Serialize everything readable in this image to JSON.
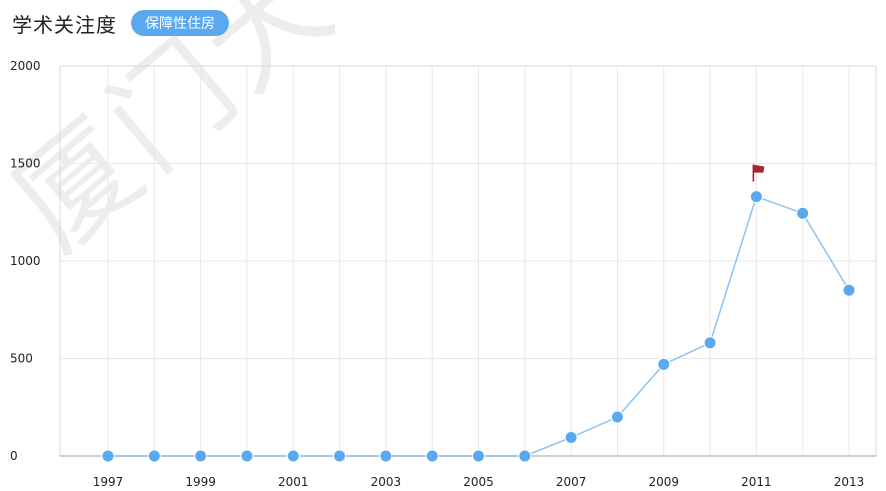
{
  "header": {
    "title": "学术关注度",
    "tag_label": "保障性住房"
  },
  "colors": {
    "accent": "#5aa9f0",
    "line": "#8cc2f2",
    "grid": "#e8e8e8",
    "axis": "#d8d8d8",
    "flag": "#a3272c"
  },
  "watermark": "厦门大学博硕士",
  "chart_data": {
    "type": "line",
    "title": "",
    "xlabel": "",
    "ylabel": "",
    "ylim": [
      0,
      2000
    ],
    "y_ticks": [
      "0",
      "500",
      "1000",
      "1500",
      "2000"
    ],
    "y_tick_values": [
      0,
      500,
      1000,
      1500,
      2000
    ],
    "x_ticks": [
      "1997",
      "1999",
      "2001",
      "2003",
      "2005",
      "2007",
      "2009",
      "2011",
      "2013"
    ],
    "x": [
      1997,
      1998,
      1999,
      2000,
      2001,
      2002,
      2003,
      2004,
      2005,
      2006,
      2007,
      2008,
      2009,
      2010,
      2011,
      2012,
      2013
    ],
    "series": [
      {
        "values": [
          0,
          0,
          0,
          0,
          0,
          0,
          0,
          0,
          0,
          0,
          95,
          200,
          470,
          580,
          1330,
          1245,
          850
        ]
      }
    ],
    "peak_marker": {
      "x": 2011,
      "icon": "flag-icon"
    },
    "grid": true
  }
}
